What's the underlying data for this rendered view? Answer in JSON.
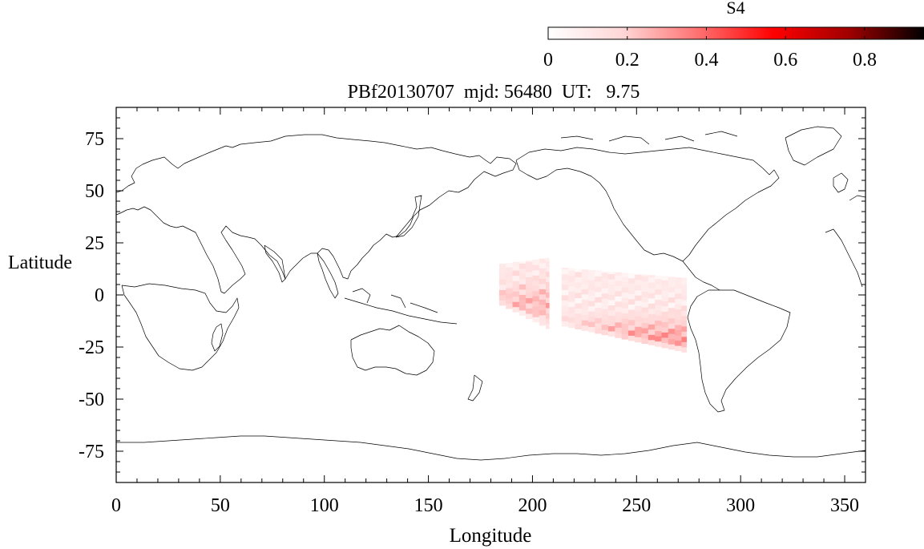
{
  "chart_data": {
    "type": "heatmap",
    "title": "PBf20130707  mjd: 56480  UT:   9.75",
    "xlabel": "Longitude",
    "ylabel": "Latitude",
    "xlim": [
      0,
      360
    ],
    "ylim": [
      -90,
      90
    ],
    "xticks": [
      0,
      50,
      100,
      150,
      200,
      250,
      300,
      350
    ],
    "yticks": [
      75,
      50,
      25,
      0,
      -25,
      -50,
      -75
    ],
    "grid": false,
    "colorbar": {
      "label": "S4",
      "range": [
        0,
        0.95
      ],
      "ticks": [
        0,
        0.2,
        0.4,
        0.6,
        0.8
      ],
      "tick_labels": [
        "0",
        "0.2",
        "0.4",
        "0.6",
        "0.8"
      ],
      "colors": [
        "#ffffff",
        "#ffd6d6",
        "#ff7070",
        "#ff0000",
        "#a00000",
        "#000000"
      ],
      "placement": "top-right"
    },
    "cells": {
      "lon_step": 3.2,
      "lat_step": 2.5,
      "regions": [
        {
          "lon": [
            184,
            208
          ],
          "lat_top_west": 15,
          "lat_top_east": 18,
          "lat_bottom_west": -5,
          "lat_bottom_east": -17,
          "base_value": 0.12,
          "peak_value": 0.25,
          "peak_lat": -5
        },
        {
          "lon": [
            214,
            274
          ],
          "lat_top_west": 13,
          "lat_top_east": 8,
          "lat_bottom_west": -15,
          "lat_bottom_east": -28,
          "base_value": 0.1,
          "peak_value": 0.3,
          "peak_lat": -22
        }
      ]
    },
    "basemap": "world-coastlines"
  }
}
